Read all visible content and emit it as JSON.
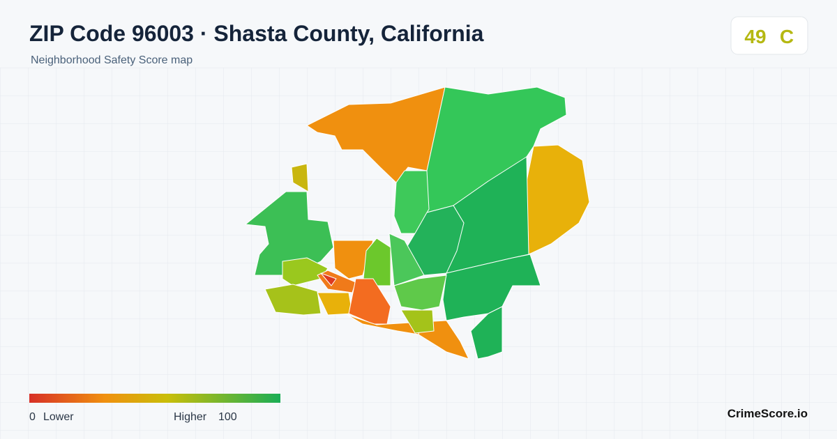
{
  "header": {
    "title": "ZIP Code 96003 · Shasta County, California",
    "subtitle": "Neighborhood Safety Score map"
  },
  "score": {
    "value": "49",
    "grade": "C"
  },
  "legend": {
    "min": "0",
    "min_label": "Lower",
    "max_label": "Higher",
    "max": "100"
  },
  "footer": {
    "brand": "CrimeScore.io"
  }
}
